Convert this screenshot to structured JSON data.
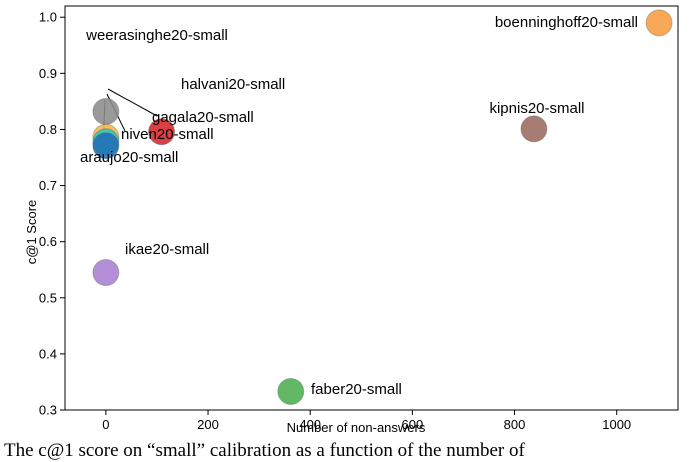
{
  "chart_data": {
    "type": "scatter",
    "xlabel": "Number of non-answers",
    "ylabel": "c@1 Score",
    "xlim": [
      -80,
      1120
    ],
    "ylim": [
      0.3,
      1.02
    ],
    "xticks": [
      "0",
      "200",
      "400",
      "600",
      "800",
      "1000"
    ],
    "xtick_values": [
      0,
      200,
      400,
      600,
      800,
      1000
    ],
    "yticks": [
      "0.3",
      "0.4",
      "0.5",
      "0.6",
      "0.7",
      "0.8",
      "0.9",
      "1.0"
    ],
    "ytick_values": [
      0.3,
      0.4,
      0.5,
      0.6,
      0.7,
      0.8,
      0.9,
      1.0
    ],
    "grid": false,
    "points": [
      {
        "label": "weerasinghe20-small",
        "x": 0,
        "y": 0.832,
        "color": "#8c8c8c"
      },
      {
        "label": "gagala20-small",
        "x": 0,
        "y": 0.786,
        "color": "#f5b845"
      },
      {
        "label": "niven20-small",
        "x": 0,
        "y": 0.778,
        "color": "#2ec4c4"
      },
      {
        "label": "araujo20-small",
        "x": 0,
        "y": 0.771,
        "color": "#1f6fb4"
      },
      {
        "label": "halvani20-small",
        "x": 109,
        "y": 0.796,
        "color": "#d62728"
      },
      {
        "label": "ikae20-small",
        "x": 0,
        "y": 0.545,
        "color": "#a97fd1"
      },
      {
        "label": "faber20-small",
        "x": 362,
        "y": 0.333,
        "color": "#4caf50"
      },
      {
        "label": "kipnis20-small",
        "x": 838,
        "y": 0.801,
        "color": "#9b6a5e"
      },
      {
        "label": "boenninghoff20-small",
        "x": 1083,
        "y": 0.99,
        "color": "#f89c40"
      }
    ]
  },
  "caption": "The c@1 score on “small” calibration as a function of the number of"
}
